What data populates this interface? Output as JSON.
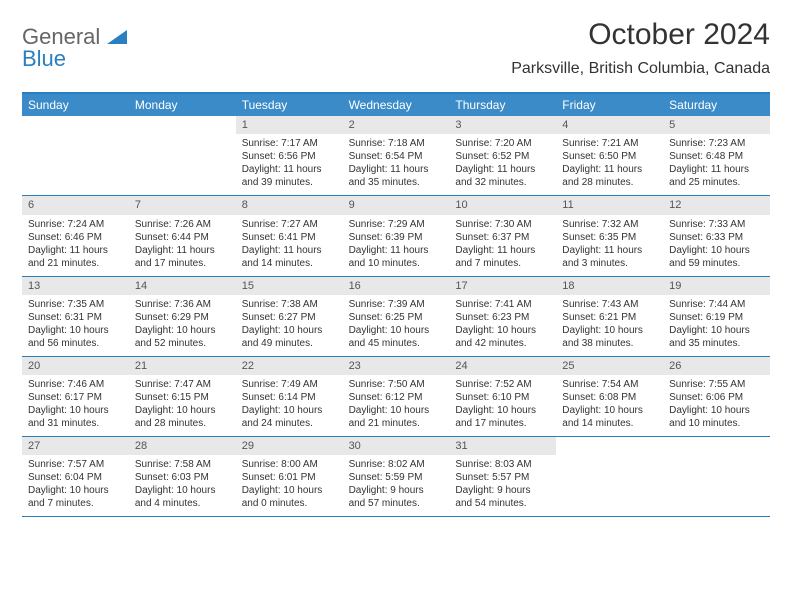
{
  "logo": {
    "text1": "General",
    "text2": "Blue"
  },
  "title": "October 2024",
  "location": "Parksville, British Columbia, Canada",
  "colors": {
    "header_bar": "#3b8bc9",
    "border": "#2a7fc0",
    "daynum_bg": "#e8e8e8",
    "text": "#333333",
    "logo_gray": "#666666",
    "logo_blue": "#2a7fc0"
  },
  "weekdays": [
    "Sunday",
    "Monday",
    "Tuesday",
    "Wednesday",
    "Thursday",
    "Friday",
    "Saturday"
  ],
  "weeks": [
    [
      null,
      null,
      {
        "n": "1",
        "sunrise": "Sunrise: 7:17 AM",
        "sunset": "Sunset: 6:56 PM",
        "day1": "Daylight: 11 hours",
        "day2": "and 39 minutes."
      },
      {
        "n": "2",
        "sunrise": "Sunrise: 7:18 AM",
        "sunset": "Sunset: 6:54 PM",
        "day1": "Daylight: 11 hours",
        "day2": "and 35 minutes."
      },
      {
        "n": "3",
        "sunrise": "Sunrise: 7:20 AM",
        "sunset": "Sunset: 6:52 PM",
        "day1": "Daylight: 11 hours",
        "day2": "and 32 minutes."
      },
      {
        "n": "4",
        "sunrise": "Sunrise: 7:21 AM",
        "sunset": "Sunset: 6:50 PM",
        "day1": "Daylight: 11 hours",
        "day2": "and 28 minutes."
      },
      {
        "n": "5",
        "sunrise": "Sunrise: 7:23 AM",
        "sunset": "Sunset: 6:48 PM",
        "day1": "Daylight: 11 hours",
        "day2": "and 25 minutes."
      }
    ],
    [
      {
        "n": "6",
        "sunrise": "Sunrise: 7:24 AM",
        "sunset": "Sunset: 6:46 PM",
        "day1": "Daylight: 11 hours",
        "day2": "and 21 minutes."
      },
      {
        "n": "7",
        "sunrise": "Sunrise: 7:26 AM",
        "sunset": "Sunset: 6:44 PM",
        "day1": "Daylight: 11 hours",
        "day2": "and 17 minutes."
      },
      {
        "n": "8",
        "sunrise": "Sunrise: 7:27 AM",
        "sunset": "Sunset: 6:41 PM",
        "day1": "Daylight: 11 hours",
        "day2": "and 14 minutes."
      },
      {
        "n": "9",
        "sunrise": "Sunrise: 7:29 AM",
        "sunset": "Sunset: 6:39 PM",
        "day1": "Daylight: 11 hours",
        "day2": "and 10 minutes."
      },
      {
        "n": "10",
        "sunrise": "Sunrise: 7:30 AM",
        "sunset": "Sunset: 6:37 PM",
        "day1": "Daylight: 11 hours",
        "day2": "and 7 minutes."
      },
      {
        "n": "11",
        "sunrise": "Sunrise: 7:32 AM",
        "sunset": "Sunset: 6:35 PM",
        "day1": "Daylight: 11 hours",
        "day2": "and 3 minutes."
      },
      {
        "n": "12",
        "sunrise": "Sunrise: 7:33 AM",
        "sunset": "Sunset: 6:33 PM",
        "day1": "Daylight: 10 hours",
        "day2": "and 59 minutes."
      }
    ],
    [
      {
        "n": "13",
        "sunrise": "Sunrise: 7:35 AM",
        "sunset": "Sunset: 6:31 PM",
        "day1": "Daylight: 10 hours",
        "day2": "and 56 minutes."
      },
      {
        "n": "14",
        "sunrise": "Sunrise: 7:36 AM",
        "sunset": "Sunset: 6:29 PM",
        "day1": "Daylight: 10 hours",
        "day2": "and 52 minutes."
      },
      {
        "n": "15",
        "sunrise": "Sunrise: 7:38 AM",
        "sunset": "Sunset: 6:27 PM",
        "day1": "Daylight: 10 hours",
        "day2": "and 49 minutes."
      },
      {
        "n": "16",
        "sunrise": "Sunrise: 7:39 AM",
        "sunset": "Sunset: 6:25 PM",
        "day1": "Daylight: 10 hours",
        "day2": "and 45 minutes."
      },
      {
        "n": "17",
        "sunrise": "Sunrise: 7:41 AM",
        "sunset": "Sunset: 6:23 PM",
        "day1": "Daylight: 10 hours",
        "day2": "and 42 minutes."
      },
      {
        "n": "18",
        "sunrise": "Sunrise: 7:43 AM",
        "sunset": "Sunset: 6:21 PM",
        "day1": "Daylight: 10 hours",
        "day2": "and 38 minutes."
      },
      {
        "n": "19",
        "sunrise": "Sunrise: 7:44 AM",
        "sunset": "Sunset: 6:19 PM",
        "day1": "Daylight: 10 hours",
        "day2": "and 35 minutes."
      }
    ],
    [
      {
        "n": "20",
        "sunrise": "Sunrise: 7:46 AM",
        "sunset": "Sunset: 6:17 PM",
        "day1": "Daylight: 10 hours",
        "day2": "and 31 minutes."
      },
      {
        "n": "21",
        "sunrise": "Sunrise: 7:47 AM",
        "sunset": "Sunset: 6:15 PM",
        "day1": "Daylight: 10 hours",
        "day2": "and 28 minutes."
      },
      {
        "n": "22",
        "sunrise": "Sunrise: 7:49 AM",
        "sunset": "Sunset: 6:14 PM",
        "day1": "Daylight: 10 hours",
        "day2": "and 24 minutes."
      },
      {
        "n": "23",
        "sunrise": "Sunrise: 7:50 AM",
        "sunset": "Sunset: 6:12 PM",
        "day1": "Daylight: 10 hours",
        "day2": "and 21 minutes."
      },
      {
        "n": "24",
        "sunrise": "Sunrise: 7:52 AM",
        "sunset": "Sunset: 6:10 PM",
        "day1": "Daylight: 10 hours",
        "day2": "and 17 minutes."
      },
      {
        "n": "25",
        "sunrise": "Sunrise: 7:54 AM",
        "sunset": "Sunset: 6:08 PM",
        "day1": "Daylight: 10 hours",
        "day2": "and 14 minutes."
      },
      {
        "n": "26",
        "sunrise": "Sunrise: 7:55 AM",
        "sunset": "Sunset: 6:06 PM",
        "day1": "Daylight: 10 hours",
        "day2": "and 10 minutes."
      }
    ],
    [
      {
        "n": "27",
        "sunrise": "Sunrise: 7:57 AM",
        "sunset": "Sunset: 6:04 PM",
        "day1": "Daylight: 10 hours",
        "day2": "and 7 minutes."
      },
      {
        "n": "28",
        "sunrise": "Sunrise: 7:58 AM",
        "sunset": "Sunset: 6:03 PM",
        "day1": "Daylight: 10 hours",
        "day2": "and 4 minutes."
      },
      {
        "n": "29",
        "sunrise": "Sunrise: 8:00 AM",
        "sunset": "Sunset: 6:01 PM",
        "day1": "Daylight: 10 hours",
        "day2": "and 0 minutes."
      },
      {
        "n": "30",
        "sunrise": "Sunrise: 8:02 AM",
        "sunset": "Sunset: 5:59 PM",
        "day1": "Daylight: 9 hours",
        "day2": "and 57 minutes."
      },
      {
        "n": "31",
        "sunrise": "Sunrise: 8:03 AM",
        "sunset": "Sunset: 5:57 PM",
        "day1": "Daylight: 9 hours",
        "day2": "and 54 minutes."
      },
      null,
      null
    ]
  ]
}
